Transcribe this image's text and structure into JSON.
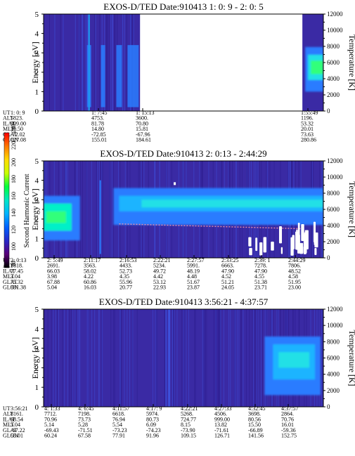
{
  "chart_data": [
    {
      "type": "heatmap",
      "title": "EXOS-D/TED   Date:910413  1: 0: 9 - 2: 0: 5",
      "ylabel": "Energy [eV]",
      "y2label": "Temperature [K]",
      "ylim": [
        0,
        5
      ],
      "y2lim": [
        0,
        12000
      ],
      "yticks": [
        "0",
        "1",
        "2",
        "3",
        "4",
        "5"
      ],
      "y2ticks": [
        "0",
        "2000",
        "4000",
        "6000",
        "8000",
        "10000",
        "12000"
      ],
      "table_rows": [
        "UT",
        "ALT",
        "ILAT",
        "MLT",
        "GLAT",
        "GLON"
      ],
      "columns": [
        {
          "UT": "1: 0: 9",
          "ALT": "5823.",
          "ILAT": "999.00",
          "MLT": "10.50",
          "GLAT": "-72.02",
          "GLON": "127.08"
        },
        {
          "UT": "1: 7:45",
          "ALT": "4753.",
          "ILAT": "81.78",
          "MLT": "14.80",
          "GLAT": "-72.85",
          "GLON": "155.01"
        },
        {
          "UT": "1: 15:13",
          "ALT": "3600.",
          "ILAT": "70.80",
          "MLT": "15.81",
          "GLAT": "-67.96",
          "GLON": "184.61"
        },
        {
          "UT": "1:55:49",
          "ALT": "1196.",
          "ILAT": "53.32",
          "MLT": "20.01",
          "GLAT": "73.63",
          "GLON": "280.86"
        }
      ]
    },
    {
      "type": "heatmap",
      "title": "EXOS-D/TED   Date:910413  2: 0:13 - 2:44:29",
      "ylabel": "Energy [eV]",
      "y2label": "Temperature [K]",
      "ylim": [
        0,
        5
      ],
      "y2lim": [
        0,
        12000
      ],
      "yticks": [
        "0",
        "1",
        "2",
        "3",
        "4",
        "5"
      ],
      "y2ticks": [
        "0",
        "2000",
        "4000",
        "6000",
        "8000",
        "10000",
        "12000"
      ],
      "table_rows": [
        "UT",
        "ALT",
        "ILAT",
        "MLT",
        "GLAT",
        "GLON"
      ],
      "columns": [
        {
          "UT": "2: 0:13",
          "ALT": "1818.",
          "ILAT": "77.45",
          "MLT": "3.04",
          "GLAT": "75.32",
          "GLON": "331.38"
        },
        {
          "UT": "2: 5:49",
          "ALT": "2691.",
          "ILAT": "66.03",
          "MLT": "3.98",
          "GLAT": "67.88",
          "GLON": "5.04"
        },
        {
          "UT": "2:11:17",
          "ALT": "3563.",
          "ILAT": "58.02",
          "MLT": "4.22",
          "GLAT": "60.86",
          "GLON": "16.03"
        },
        {
          "UT": "2:16:53",
          "ALT": "4433.",
          "ILAT": "52.73",
          "MLT": "4.35",
          "GLAT": "55.96",
          "GLON": "20.77"
        },
        {
          "UT": "2:22:21",
          "ALT": "5234.",
          "ILAT": "49.72",
          "MLT": "4.42",
          "GLAT": "53.12",
          "GLON": "22.93"
        },
        {
          "UT": "2:27:57",
          "ALT": "5991.",
          "ILAT": "48.19",
          "MLT": "4.48",
          "GLAT": "51.67",
          "GLON": "23.87"
        },
        {
          "UT": "2:33:25",
          "ALT": "6663.",
          "ILAT": "47.90",
          "MLT": "4.52",
          "GLAT": "51.21",
          "GLON": "24.05"
        },
        {
          "UT": "2:39: 1",
          "ALT": "7278.",
          "ILAT": "47.90",
          "MLT": "4.55",
          "GLAT": "51.38",
          "GLON": "23.71"
        },
        {
          "UT": "2:44:29",
          "ALT": "7806.",
          "ILAT": "48.52",
          "MLT": "4.58",
          "GLAT": "51.95",
          "GLON": "23.00"
        }
      ]
    },
    {
      "type": "heatmap",
      "title": "EXOS-D/TED   Date:910413  3:56:21 - 4:37:57",
      "ylabel": "Energy [eV]",
      "y2label": "Temperature [K]",
      "ylim": [
        0,
        5
      ],
      "y2lim": [
        0,
        12000
      ],
      "yticks": [
        "0",
        "1",
        "2",
        "3",
        "4",
        "5"
      ],
      "y2ticks": [
        "0",
        "2000",
        "4000",
        "6000",
        "8000",
        "10000",
        "12000"
      ],
      "table_rows": [
        "UT",
        "ALT",
        "ILAT",
        "MLT",
        "GLAT",
        "GLON"
      ],
      "columns": [
        {
          "UT": "3:56:21",
          "ALT": "8161.",
          "ILAT": "68.54",
          "MLT": "5.04",
          "GLAT": "-67.22",
          "GLON": "55.01"
        },
        {
          "UT": "4: 1:33",
          "ALT": "7712.",
          "ILAT": "70.96",
          "MLT": "5.14",
          "GLAT": "-69.43",
          "GLON": "60.24"
        },
        {
          "UT": "4: 6:45",
          "ALT": "7198.",
          "ILAT": "73.73",
          "MLT": "5.28",
          "GLAT": "-71.51",
          "GLON": "67.58"
        },
        {
          "UT": "4:11:57",
          "ALT": "6618.",
          "ILAT": "76.94",
          "MLT": "5.54",
          "GLAT": "-73.23",
          "GLON": "77.91"
        },
        {
          "UT": "4:17: 9",
          "ALT": "5974.",
          "ILAT": "80.73",
          "MLT": "6.09",
          "GLAT": "-74.23",
          "GLON": "91.96"
        },
        {
          "UT": "4:22:21",
          "ALT": "5268.",
          "ILAT": "724.77",
          "MLT": "8.15",
          "GLAT": "-73.90",
          "GLON": "109.15"
        },
        {
          "UT": "4:27:33",
          "ALT": "4506.",
          "ILAT": "999.00",
          "MLT": "13.82",
          "GLAT": "-71.61",
          "GLON": "126.71"
        },
        {
          "UT": "4:32:45",
          "ALT": "3698.",
          "ILAT": "80.56",
          "MLT": "15.50",
          "GLAT": "-66.89",
          "GLON": "141.56"
        },
        {
          "UT": "4:37:57",
          "ALT": "2864.",
          "ILAT": "70.76",
          "MLT": "16.01",
          "GLAT": "-59.36",
          "GLON": "152.75"
        }
      ]
    }
  ],
  "colorbar": {
    "label": "Second Harmonic Current",
    "ticks": [
      "80",
      "100",
      "120",
      "140",
      "160",
      "180",
      "200",
      "220",
      "240"
    ],
    "colors": [
      "#000000",
      "#5a0078",
      "#2828c8",
      "#0060ff",
      "#00b4ff",
      "#00e6c8",
      "#00ff3c",
      "#c8ff00",
      "#ffdc00",
      "#ff7800",
      "#ff0000"
    ]
  }
}
